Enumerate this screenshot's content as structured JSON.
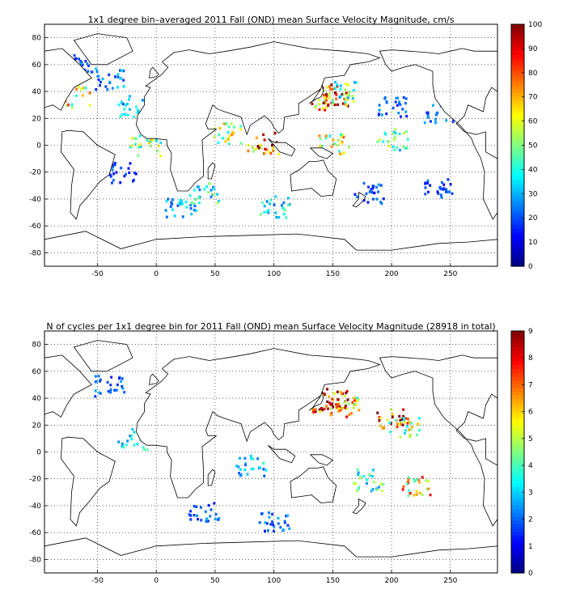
{
  "chart_data": [
    {
      "type": "heatmap",
      "title": "1x1 degree bin–averaged 2011 Fall (OND) mean Surface Velocity Magnitude, cm/s",
      "xlabel": "",
      "ylabel": "",
      "xlim": [
        -95,
        290
      ],
      "ylim": [
        -90,
        90
      ],
      "x_ticks": [
        "-50",
        "0",
        "50",
        "100",
        "150",
        "200",
        "250"
      ],
      "x_tick_values": [
        -50,
        0,
        50,
        100,
        150,
        200,
        250
      ],
      "y_ticks": [
        "80",
        "60",
        "40",
        "20",
        "0",
        "-20",
        "-40",
        "-60",
        "-80"
      ],
      "y_tick_values": [
        80,
        60,
        40,
        20,
        0,
        -20,
        -40,
        -60,
        -80
      ],
      "grid": true,
      "colorbar": {
        "min": 0,
        "max": 100,
        "ticks": [
          "0",
          "10",
          "20",
          "30",
          "40",
          "50",
          "60",
          "70",
          "80",
          "90",
          "100"
        ],
        "tick_values": [
          0,
          10,
          20,
          30,
          40,
          50,
          60,
          70,
          80,
          90,
          100
        ]
      },
      "description_cells": [
        {
          "x": -60,
          "y": 60,
          "value": 20
        },
        {
          "x": -40,
          "y": 50,
          "value": 25
        },
        {
          "x": -70,
          "y": 37,
          "value": 60
        },
        {
          "x": -20,
          "y": 30,
          "value": 30
        },
        {
          "x": 140,
          "y": 35,
          "value": 75
        },
        {
          "x": 150,
          "y": 38,
          "value": 85
        },
        {
          "x": 160,
          "y": 40,
          "value": 45
        },
        {
          "x": 200,
          "y": 30,
          "value": 20
        },
        {
          "x": 240,
          "y": 25,
          "value": 25
        },
        {
          "x": 60,
          "y": 10,
          "value": 55
        },
        {
          "x": 90,
          "y": 2,
          "value": 80
        },
        {
          "x": 150,
          "y": 2,
          "value": 60
        },
        {
          "x": 200,
          "y": 5,
          "value": 45
        },
        {
          "x": -10,
          "y": 0,
          "value": 50
        },
        {
          "x": -30,
          "y": -20,
          "value": 18
        },
        {
          "x": 40,
          "y": -35,
          "value": 40
        },
        {
          "x": 100,
          "y": -45,
          "value": 35
        },
        {
          "x": 180,
          "y": -35,
          "value": 20
        },
        {
          "x": 240,
          "y": -30,
          "value": 18
        },
        {
          "x": 20,
          "y": -45,
          "value": 30
        }
      ]
    },
    {
      "type": "heatmap",
      "title": "N of cycles per 1x1 degree bin for 2011 Fall (OND) mean Surface Velocity Magnitude (28918 in total)",
      "xlabel": "",
      "ylabel": "",
      "xlim": [
        -95,
        290
      ],
      "ylim": [
        -90,
        90
      ],
      "x_ticks": [
        "-50",
        "0",
        "50",
        "100",
        "150",
        "200",
        "250"
      ],
      "x_tick_values": [
        -50,
        0,
        50,
        100,
        150,
        200,
        250
      ],
      "y_ticks": [
        "80",
        "60",
        "40",
        "20",
        "0",
        "-20",
        "-40",
        "-60",
        "-80"
      ],
      "y_tick_values": [
        80,
        60,
        40,
        20,
        0,
        -20,
        -40,
        -60,
        -80
      ],
      "grid": true,
      "colorbar": {
        "min": 0,
        "max": 9,
        "ticks": [
          "0",
          "1",
          "2",
          "3",
          "4",
          "5",
          "6",
          "7",
          "8",
          "9"
        ],
        "tick_values": [
          0,
          1,
          2,
          3,
          4,
          5,
          6,
          7,
          8,
          9
        ]
      },
      "description_cells": [
        {
          "x": 150,
          "y": 40,
          "value": 8
        },
        {
          "x": 145,
          "y": 38,
          "value": 7
        },
        {
          "x": 160,
          "y": 35,
          "value": 6
        },
        {
          "x": 200,
          "y": 25,
          "value": 8
        },
        {
          "x": 210,
          "y": 20,
          "value": 5
        },
        {
          "x": 180,
          "y": -20,
          "value": 4
        },
        {
          "x": 220,
          "y": -25,
          "value": 6
        },
        {
          "x": -40,
          "y": 50,
          "value": 2
        },
        {
          "x": -20,
          "y": 10,
          "value": 3
        },
        {
          "x": 80,
          "y": -10,
          "value": 3
        },
        {
          "x": 40,
          "y": -45,
          "value": 2
        },
        {
          "x": 100,
          "y": -50,
          "value": 2
        }
      ]
    }
  ]
}
